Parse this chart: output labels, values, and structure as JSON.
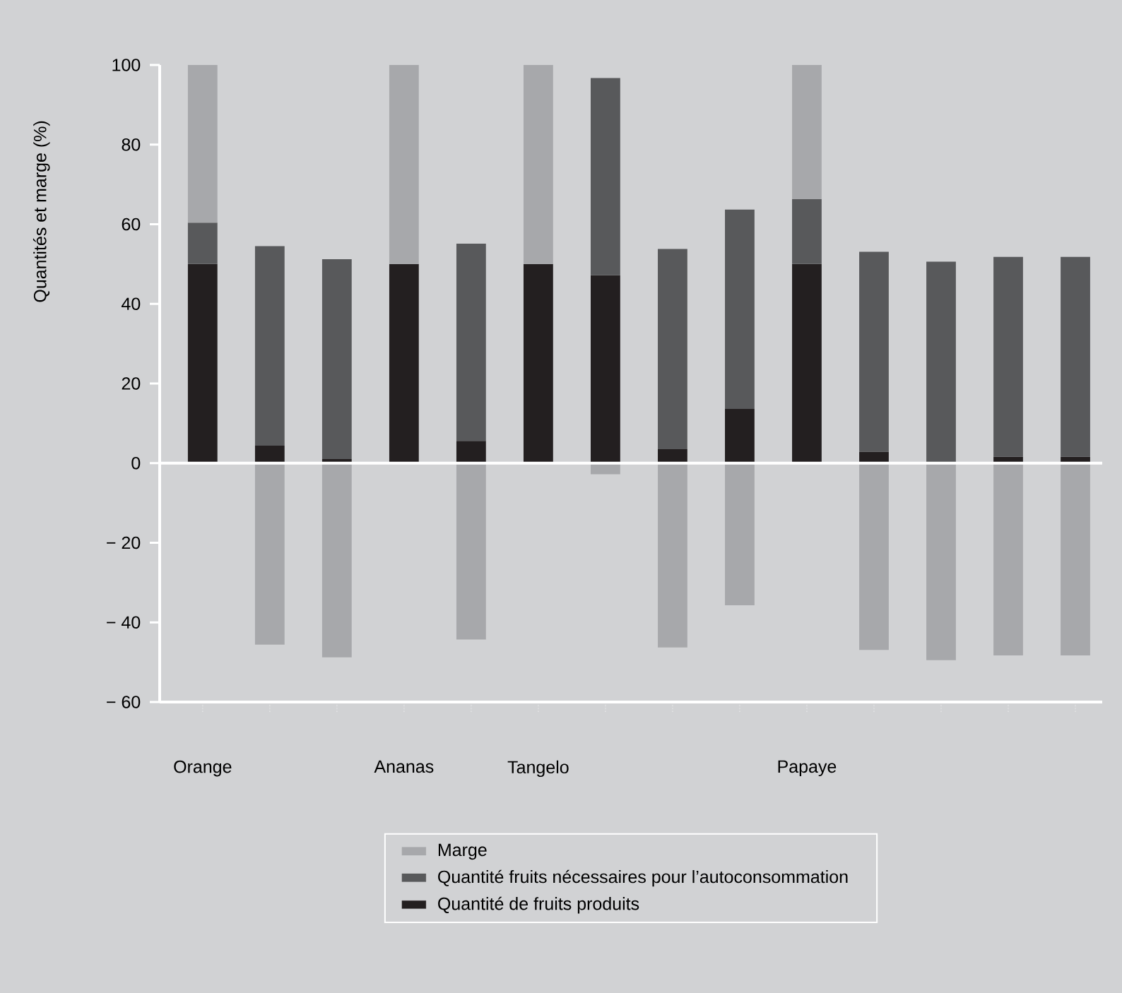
{
  "chart_data": {
    "type": "bar",
    "stacked": true,
    "ylabel": "Quantités et marge (%)",
    "categories": [
      "Orange",
      null,
      null,
      "Ananas",
      null,
      "Tangelo",
      null,
      null,
      null,
      "Papaye",
      null,
      null,
      null,
      null
    ],
    "series": [
      {
        "name": "Quantité de fruits produits",
        "color": "#231f20",
        "values": [
          50,
          4.4,
          1.0,
          50,
          5.6,
          50,
          47.2,
          3.5,
          13.6,
          50,
          2.9,
          0,
          1.6,
          1.6
        ]
      },
      {
        "name": "Quantité fruits nécessaires pour l’autoconsommation",
        "color": "#58595b",
        "values": [
          10.4,
          50.1,
          50.2,
          0,
          49.5,
          0,
          49.5,
          50.3,
          50.1,
          16.3,
          50.2,
          50.6,
          50.2,
          50.2
        ]
      },
      {
        "name": "Marge",
        "color": "#a7a8ab",
        "values": [
          39.6,
          -45.6,
          -48.8,
          50,
          -44.3,
          50,
          -2.8,
          -46.3,
          -35.7,
          33.7,
          -46.9,
          -49.5,
          -48.3,
          -48.3
        ]
      }
    ],
    "ylim": [
      -60,
      100
    ],
    "yticks": [
      {
        "value": -60,
        "label": "− 60"
      },
      {
        "value": -40,
        "label": "− 40"
      },
      {
        "value": -20,
        "label": "− 20"
      },
      0,
      20,
      40,
      60,
      80,
      100
    ],
    "ref_lines": [
      {
        "axis": "y",
        "value": 0,
        "color": "#ffffff"
      }
    ],
    "legend": "bottom"
  }
}
